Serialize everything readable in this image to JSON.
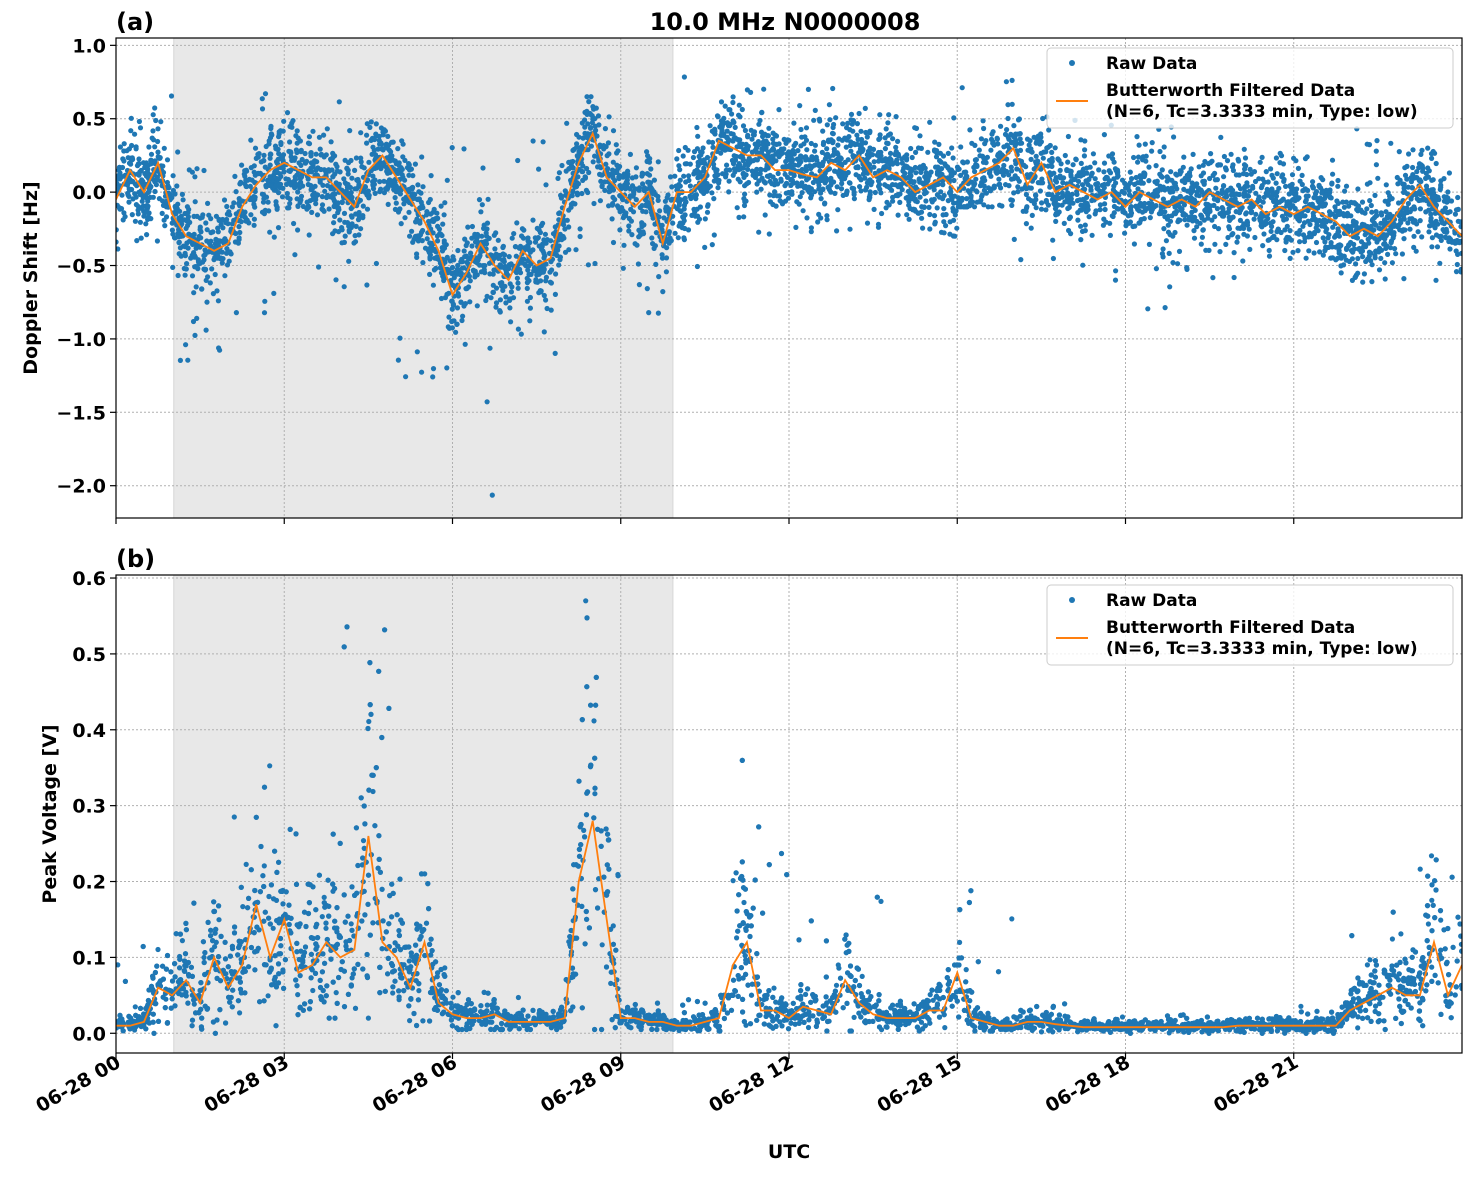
{
  "title": "10.0 MHz N0000008",
  "colors": {
    "raw": "#1f77b4",
    "filtered": "#ff7f0e",
    "shade": "#e8e8e8",
    "grid": "#b0b0b0"
  },
  "xaxis": {
    "label": "UTC",
    "range_hours": [
      0,
      24
    ],
    "ticks": [
      0,
      3,
      6,
      9,
      12,
      15,
      18,
      21
    ],
    "tick_labels": [
      "06-28 00",
      "06-28 03",
      "06-28 06",
      "06-28 09",
      "06-28 12",
      "06-28 15",
      "06-28 18",
      "06-28 21"
    ]
  },
  "shaded_interval_hours": [
    1.03,
    9.93
  ],
  "legend": {
    "raw": "Raw Data",
    "filtered_line1": "Butterworth Filtered Data",
    "filtered_line2": "(N=6, Tc=3.3333 min, Type: low)",
    "placement": "top-right"
  },
  "chart_data": [
    {
      "panel": "(a)",
      "type": "scatter+line",
      "ylabel": "Doppler Shift [Hz]",
      "ylim": [
        -2.22,
        1.05
      ],
      "yticks": [
        1.0,
        0.5,
        0.0,
        -0.5,
        -1.0,
        -1.5,
        -2.0
      ],
      "ytick_labels": [
        "1.0",
        "0.5",
        "0.0",
        "−0.5",
        "−1.0",
        "−1.5",
        "−2.0"
      ],
      "grid": true,
      "filtered": {
        "name": "Butterworth Filtered Data",
        "x_step_hours": 0.25,
        "values": [
          -0.05,
          0.15,
          0.0,
          0.2,
          -0.15,
          -0.3,
          -0.35,
          -0.4,
          -0.35,
          -0.1,
          0.05,
          0.15,
          0.2,
          0.15,
          0.1,
          0.1,
          0.0,
          -0.1,
          0.15,
          0.25,
          0.1,
          -0.05,
          -0.2,
          -0.4,
          -0.7,
          -0.55,
          -0.35,
          -0.5,
          -0.6,
          -0.4,
          -0.5,
          -0.45,
          -0.1,
          0.2,
          0.4,
          0.1,
          0.0,
          -0.1,
          0.0,
          -0.35,
          0.0,
          0.0,
          0.1,
          0.35,
          0.3,
          0.25,
          0.25,
          0.15,
          0.15,
          0.12,
          0.1,
          0.2,
          0.15,
          0.25,
          0.1,
          0.15,
          0.1,
          0.0,
          0.05,
          0.1,
          0.0,
          0.1,
          0.15,
          0.2,
          0.3,
          0.05,
          0.2,
          0.0,
          0.05,
          0.0,
          -0.05,
          0.0,
          -0.1,
          0.0,
          -0.05,
          -0.1,
          -0.05,
          -0.1,
          0.0,
          -0.05,
          -0.1,
          -0.05,
          -0.15,
          -0.1,
          -0.15,
          -0.1,
          -0.15,
          -0.2,
          -0.3,
          -0.25,
          -0.3,
          -0.2,
          -0.05,
          0.05,
          -0.1,
          -0.2,
          -0.3
        ]
      },
      "raw": {
        "name": "Raw Data",
        "hourly_min": [
          -0.45,
          -1.27,
          -0.9,
          -0.6,
          -0.7,
          -1.3,
          -2.07,
          -1.1,
          -0.7,
          -0.84,
          -0.65,
          -0.3,
          -0.3,
          -0.3,
          -0.3,
          -0.1,
          -0.5,
          -0.6,
          -0.8,
          -0.6,
          -0.65,
          -0.55,
          -0.65,
          -0.65
        ],
        "hourly_max": [
          0.72,
          0.3,
          0.68,
          0.62,
          0.52,
          0.35,
          0.3,
          0.35,
          0.65,
          0.45,
          0.9,
          0.75,
          0.75,
          0.6,
          0.55,
          0.85,
          0.65,
          0.5,
          0.45,
          0.4,
          0.3,
          0.25,
          0.5,
          0.3
        ]
      }
    },
    {
      "panel": "(b)",
      "type": "scatter+line",
      "ylabel": "Peak Voltage [V]",
      "ylim": [
        -0.026,
        0.604
      ],
      "yticks": [
        0.0,
        0.1,
        0.2,
        0.3,
        0.4,
        0.5,
        0.6
      ],
      "ytick_labels": [
        "0.0",
        "0.1",
        "0.2",
        "0.3",
        "0.4",
        "0.5",
        "0.6"
      ],
      "grid": true,
      "filtered": {
        "name": "Butterworth Filtered Data",
        "x_step_hours": 0.25,
        "values": [
          0.01,
          0.01,
          0.015,
          0.06,
          0.05,
          0.07,
          0.04,
          0.1,
          0.06,
          0.09,
          0.17,
          0.1,
          0.15,
          0.08,
          0.09,
          0.12,
          0.1,
          0.11,
          0.26,
          0.12,
          0.1,
          0.06,
          0.12,
          0.04,
          0.025,
          0.02,
          0.02,
          0.025,
          0.015,
          0.015,
          0.015,
          0.015,
          0.02,
          0.2,
          0.28,
          0.15,
          0.02,
          0.02,
          0.015,
          0.015,
          0.01,
          0.01,
          0.015,
          0.02,
          0.09,
          0.12,
          0.03,
          0.03,
          0.02,
          0.035,
          0.03,
          0.025,
          0.07,
          0.04,
          0.025,
          0.02,
          0.02,
          0.02,
          0.03,
          0.03,
          0.08,
          0.02,
          0.015,
          0.01,
          0.01,
          0.015,
          0.015,
          0.012,
          0.01,
          0.008,
          0.008,
          0.008,
          0.008,
          0.008,
          0.008,
          0.008,
          0.008,
          0.008,
          0.008,
          0.008,
          0.01,
          0.01,
          0.01,
          0.01,
          0.01,
          0.01,
          0.01,
          0.01,
          0.03,
          0.04,
          0.05,
          0.06,
          0.05,
          0.05,
          0.12,
          0.05,
          0.09
        ]
      },
      "raw": {
        "name": "Raw Data",
        "hourly_min": [
          0.0,
          0.0,
          0.01,
          0.02,
          0.02,
          0.01,
          0.005,
          0.005,
          0.005,
          0.005,
          0.003,
          0.005,
          0.003,
          0.003,
          0.003,
          0.003,
          0.002,
          0.0,
          0.0,
          0.0,
          0.0,
          0.0,
          0.005,
          0.01
        ],
        "hourly_max": [
          0.13,
          0.2,
          0.36,
          0.36,
          0.57,
          0.21,
          0.06,
          0.05,
          0.57,
          0.05,
          0.05,
          0.37,
          0.15,
          0.22,
          0.09,
          0.19,
          0.04,
          0.03,
          0.025,
          0.025,
          0.03,
          0.04,
          0.16,
          0.25
        ]
      }
    }
  ]
}
